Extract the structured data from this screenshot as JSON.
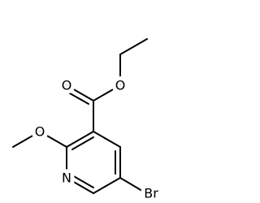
{
  "atoms": {
    "carbonyl_oxygen": "O",
    "ester_oxygen": "O",
    "methoxy_oxygen": "O",
    "ring_nitrogen": "N",
    "bromine": "Br"
  }
}
